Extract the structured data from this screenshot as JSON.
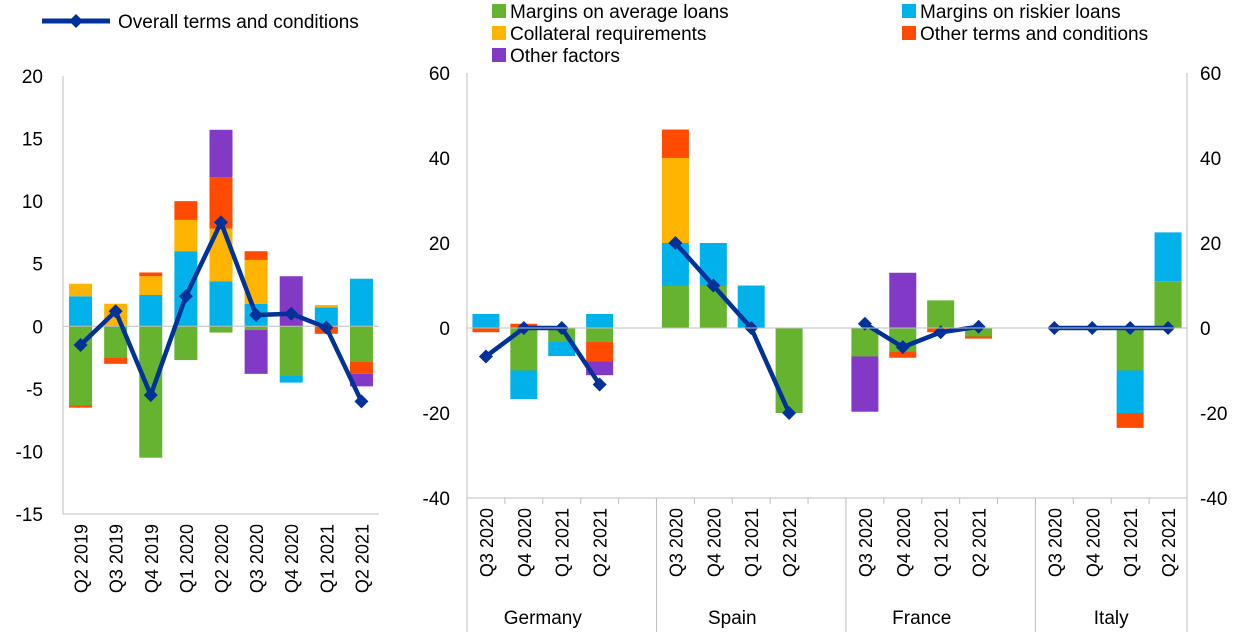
{
  "colors": {
    "Margins on average loans": "#65b32e",
    "Margins on riskier loans": "#00b1ea",
    "Collateral requirements": "#ffb400",
    "Other terms and conditions": "#ff4b00",
    "Other factors": "#8139c6",
    "Overall terms and conditions": "#003299",
    "axis": "#bfbfbf"
  },
  "icons": {
    "legend_line_marker": "diamond-icon"
  },
  "chart_data": [
    {
      "type": "bar",
      "stacked": true,
      "overlay_line": "Overall terms and conditions",
      "legend": {
        "placement": "top-left",
        "entries": [
          "Overall terms and conditions"
        ]
      },
      "categories": [
        "Q2 2019",
        "Q3 2019",
        "Q4 2019",
        "Q1 2020",
        "Q2 2020",
        "Q3 2020",
        "Q4 2020",
        "Q1 2021",
        "Q2 2021"
      ],
      "ylim": [
        -15,
        20
      ],
      "yticks": [
        "20",
        "15",
        "10",
        "5",
        "0",
        "-5",
        "-10",
        "-15"
      ],
      "grid": false,
      "series": [
        {
          "name": "Margins on average loans",
          "values": [
            -6.3,
            -2.5,
            -10.5,
            -2.7,
            -0.5,
            -0.3,
            -3.9,
            0,
            -2.8
          ]
        },
        {
          "name": "Margins on riskier loans",
          "values": [
            2.4,
            0,
            2.5,
            6.0,
            3.6,
            1.8,
            -0.6,
            1.5,
            3.8
          ]
        },
        {
          "name": "Collateral requirements",
          "values": [
            1.0,
            1.8,
            1.5,
            2.5,
            4.2,
            3.5,
            0,
            0.2,
            0
          ]
        },
        {
          "name": "Other terms and conditions",
          "values": [
            -0.2,
            -0.5,
            0.3,
            1.5,
            4.1,
            0.7,
            0,
            -0.6,
            -1.0
          ]
        },
        {
          "name": "Other factors",
          "values": [
            0,
            0,
            0,
            0,
            3.8,
            -3.5,
            4.0,
            0,
            -1.0
          ]
        },
        {
          "name": "Overall terms and conditions",
          "type": "line",
          "values": [
            -1.5,
            1.2,
            -5.5,
            2.4,
            8.3,
            0.9,
            1.0,
            -0.1,
            -6.0
          ]
        }
      ]
    },
    {
      "type": "bar",
      "stacked": true,
      "overlay_line": "Overall terms and conditions",
      "legend": {
        "placement": "top",
        "entries": [
          "Margins on average loans",
          "Margins on riskier loans",
          "Collateral requirements",
          "Other terms and conditions",
          "Other factors"
        ]
      },
      "ylim": [
        -40,
        60
      ],
      "yticks": [
        "60",
        "40",
        "20",
        "0",
        "-20",
        "-40"
      ],
      "secondary_axis": true,
      "grid": false,
      "categories": [
        "Q3 2020",
        "Q4 2020",
        "Q1 2021",
        "Q2 2021"
      ],
      "groups": [
        {
          "name": "Germany",
          "series": [
            {
              "name": "Margins on average loans",
              "values": [
                0,
                -10,
                -3.3,
                -3.3
              ]
            },
            {
              "name": "Margins on riskier loans",
              "values": [
                3.3,
                -6.7,
                -3.3,
                3.3
              ]
            },
            {
              "name": "Collateral requirements",
              "values": [
                0,
                0,
                0,
                0
              ]
            },
            {
              "name": "Other terms and conditions",
              "values": [
                -1.0,
                1.0,
                0,
                -4.5
              ]
            },
            {
              "name": "Other factors",
              "values": [
                0,
                0,
                0,
                -3.3
              ]
            },
            {
              "name": "Overall terms and conditions",
              "type": "line",
              "values": [
                -6.7,
                0,
                0,
                -13.3
              ]
            }
          ]
        },
        {
          "name": "Spain",
          "series": [
            {
              "name": "Margins on average loans",
              "values": [
                10,
                10,
                0,
                -20
              ]
            },
            {
              "name": "Margins on riskier loans",
              "values": [
                10,
                10,
                10,
                0
              ]
            },
            {
              "name": "Collateral requirements",
              "values": [
                20,
                0,
                0,
                0
              ]
            },
            {
              "name": "Other terms and conditions",
              "values": [
                6.7,
                0,
                0,
                0
              ]
            },
            {
              "name": "Other factors",
              "values": [
                0,
                0,
                0,
                0
              ]
            },
            {
              "name": "Overall terms and conditions",
              "type": "line",
              "values": [
                20,
                10,
                0,
                -20
              ]
            }
          ]
        },
        {
          "name": "France",
          "series": [
            {
              "name": "Margins on average loans",
              "values": [
                -6.7,
                -5.5,
                6.5,
                -2.0
              ]
            },
            {
              "name": "Margins on riskier loans",
              "values": [
                0,
                0,
                0,
                0
              ]
            },
            {
              "name": "Collateral requirements",
              "values": [
                0,
                0,
                0,
                0
              ]
            },
            {
              "name": "Other terms and conditions",
              "values": [
                0,
                -1.5,
                -1.0,
                -0.5
              ]
            },
            {
              "name": "Other factors",
              "values": [
                -13,
                13,
                0,
                0
              ]
            },
            {
              "name": "Overall terms and conditions",
              "type": "line",
              "values": [
                1.0,
                -4.5,
                -1.0,
                0.3
              ]
            }
          ]
        },
        {
          "name": "Italy",
          "series": [
            {
              "name": "Margins on average loans",
              "values": [
                0,
                0,
                -10,
                11
              ]
            },
            {
              "name": "Margins on riskier loans",
              "values": [
                0,
                0,
                -10,
                11.5
              ]
            },
            {
              "name": "Collateral requirements",
              "values": [
                0,
                0,
                0,
                0
              ]
            },
            {
              "name": "Other terms and conditions",
              "values": [
                0,
                0,
                -3.5,
                0
              ]
            },
            {
              "name": "Other factors",
              "values": [
                0,
                0,
                0,
                0
              ]
            },
            {
              "name": "Overall terms and conditions",
              "type": "line",
              "values": [
                0,
                0,
                0,
                0
              ]
            }
          ]
        }
      ]
    }
  ]
}
